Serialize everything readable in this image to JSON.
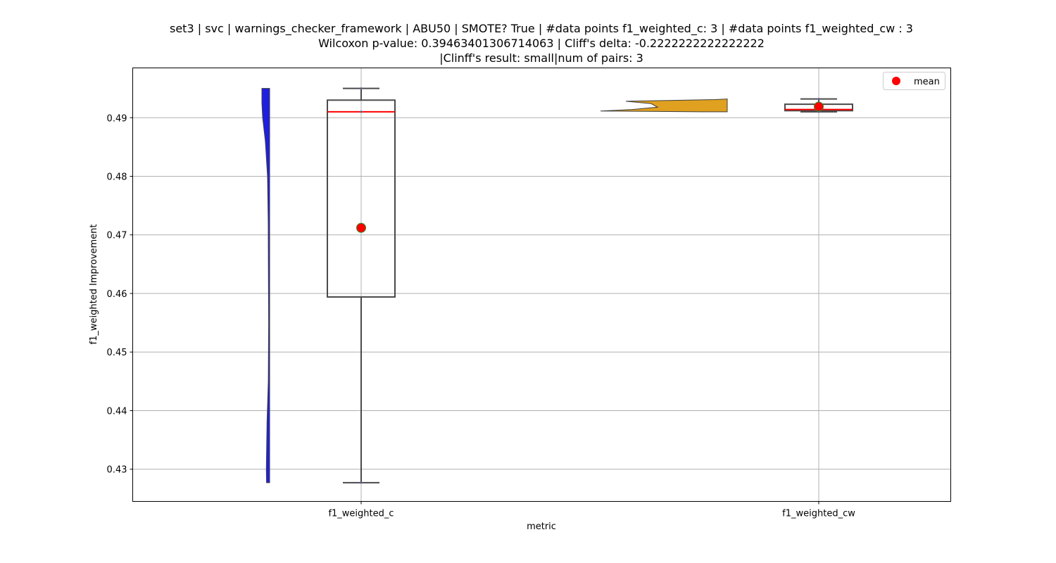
{
  "chart_data": {
    "type": "violin+box",
    "title_lines": [
      "set3 | svc | warnings_checker_framework | ABU50 | SMOTE? True | #data points f1_weighted_c: 3 | #data points f1_weighted_cw : 3",
      "Wilcoxon p-value: 0.39463401306714063 | Cliff's delta: -0.2222222222222222",
      "|Clinff's result: small|num of pairs: 3"
    ],
    "xlabel": "metric",
    "ylabel": "f1_weighted Improvement",
    "categories": [
      "f1_weighted_c",
      "f1_weighted_cw"
    ],
    "ylim": [
      0.4245,
      0.4985
    ],
    "yticks": [
      0.43,
      0.44,
      0.45,
      0.46,
      0.47,
      0.48,
      0.49
    ],
    "ytick_labels": [
      "0.43",
      "0.44",
      "0.45",
      "0.46",
      "0.47",
      "0.48",
      "0.49"
    ],
    "grid": true,
    "legend": {
      "position": "top-right",
      "label": "mean",
      "color": "#ff0000"
    },
    "series": [
      {
        "name": "f1_weighted_c",
        "violin_color": "#1f1fe0",
        "points": [
          0.4277,
          0.491,
          0.495
        ],
        "box": {
          "whisker_low": 0.4277,
          "q1": 0.4594,
          "median": 0.491,
          "q3": 0.493,
          "whisker_high": 0.495
        },
        "mean": 0.4712,
        "violin_profile": [
          [
            0.4277,
            0.0
          ],
          [
            0.4277,
            0.4
          ],
          [
            0.43,
            0.43
          ],
          [
            0.438,
            0.34
          ],
          [
            0.445,
            0.17
          ],
          [
            0.455,
            0.13
          ],
          [
            0.465,
            0.16
          ],
          [
            0.472,
            0.18
          ],
          [
            0.48,
            0.27
          ],
          [
            0.486,
            0.55
          ],
          [
            0.49,
            0.9
          ],
          [
            0.4925,
            1.0
          ],
          [
            0.495,
            1.0
          ],
          [
            0.495,
            0.0
          ]
        ]
      },
      {
        "name": "f1_weighted_cw",
        "violin_color": "#e0a020",
        "points": [
          0.491,
          0.4914,
          0.4932
        ],
        "box": {
          "whisker_low": 0.491,
          "q1": 0.4912,
          "median": 0.4914,
          "q3": 0.4923,
          "whisker_high": 0.4932
        },
        "mean": 0.4919,
        "violin_profile": [
          [
            0.491,
            0.0
          ],
          [
            0.491,
            0.2
          ],
          [
            0.49115,
            1.0
          ],
          [
            0.4914,
            0.75
          ],
          [
            0.4918,
            0.55
          ],
          [
            0.4924,
            0.6
          ],
          [
            0.4928,
            0.8
          ],
          [
            0.4931,
            0.1
          ],
          [
            0.4932,
            0.0
          ]
        ]
      }
    ]
  }
}
